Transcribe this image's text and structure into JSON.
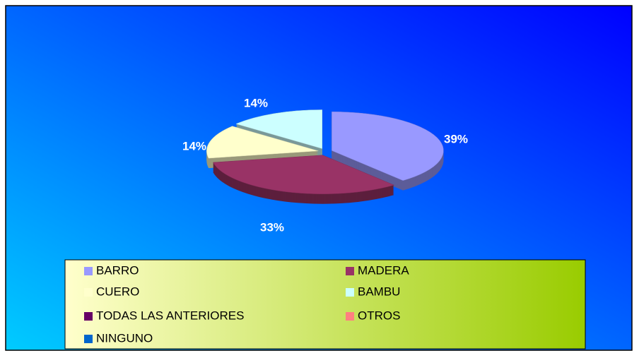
{
  "chart_data": {
    "type": "pie",
    "categories": [
      "BARRO",
      "MADERA",
      "CUERO",
      "BAMBU",
      "TODAS LAS ANTERIORES",
      "OTROS",
      "NINGUNO"
    ],
    "values": [
      39,
      33,
      14,
      14,
      0,
      0,
      0
    ],
    "value_labels": [
      "39%",
      "33%",
      "14%",
      "14%",
      null,
      null,
      null
    ],
    "colors": [
      "#9999ff",
      "#993366",
      "#ffffcc",
      "#ccffff",
      "#660066",
      "#ff8080",
      "#0066cc"
    ],
    "legend": "bottom"
  }
}
